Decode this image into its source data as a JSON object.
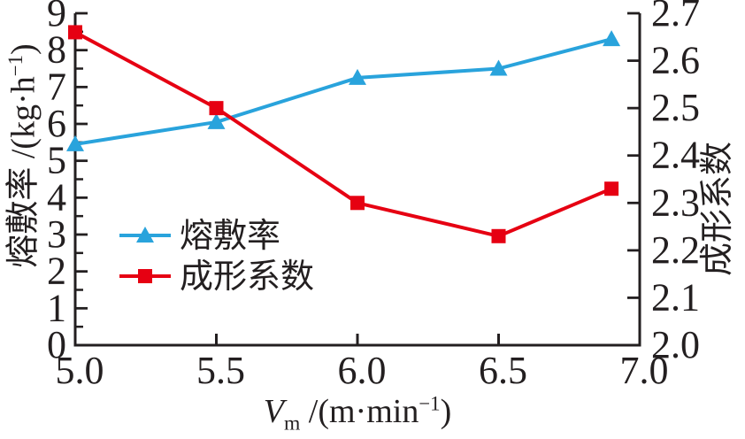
{
  "chart_data": {
    "type": "line",
    "title": "",
    "xlabel": "Vm /(m·min−1)",
    "ylabel_left": "熔敷率 /(kg·h−1)",
    "ylabel_right": "成形系数",
    "grid": false,
    "legend_position": "inside left-middle",
    "x": [
      5.0,
      5.5,
      6.0,
      6.5,
      6.9
    ],
    "series": [
      {
        "key": "deposition-rate",
        "name": "熔敷率",
        "axis": "left",
        "marker": "triangle",
        "color": "#29a3dc",
        "values": [
          5.45,
          6.05,
          7.25,
          7.5,
          8.3
        ]
      },
      {
        "key": "forming-coefficient",
        "name": "成形系数",
        "axis": "right",
        "marker": "square",
        "color": "#e60012",
        "values": [
          2.66,
          2.5,
          2.3,
          2.23,
          2.33
        ]
      }
    ],
    "x_axis": {
      "min": 5.0,
      "max": 7.0,
      "tick_step": 0.5,
      "tick_labels": [
        "5.0",
        "5.5",
        "6.0",
        "6.5",
        "7.0"
      ]
    },
    "left_axis": {
      "min": 0,
      "max": 9,
      "tick_step": 1,
      "minor_step": 0.5,
      "tick_labels": [
        "0",
        "1",
        "2",
        "3",
        "4",
        "5",
        "6",
        "7",
        "8",
        "9"
      ]
    },
    "right_axis": {
      "min": 2.0,
      "max": 2.7,
      "tick_step": 0.1,
      "tick_labels": [
        "2.0",
        "2.1",
        "2.2",
        "2.3",
        "2.4",
        "2.5",
        "2.6",
        "2.7"
      ]
    }
  },
  "labels": {
    "xlabel": {
      "var": "V",
      "sub": "m",
      "mid": " /(m·min",
      "sup": "−1",
      "end": ")"
    },
    "ylabel_left": {
      "main": "熔敷率 /(kg·h",
      "sup": "−1",
      "end": ")"
    },
    "ylabel_right": "成形系数"
  },
  "legend": {
    "items": [
      {
        "label": "熔敷率"
      },
      {
        "label": "成形系数"
      }
    ]
  },
  "colors": {
    "blue": "#29a3dc",
    "red": "#e60012",
    "axis": "#231f20",
    "text": "#231f20",
    "background": "#ffffff"
  }
}
